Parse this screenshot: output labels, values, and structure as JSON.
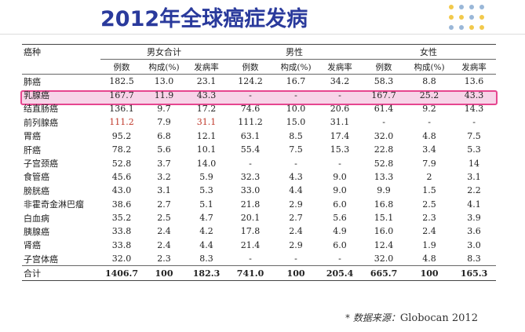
{
  "title": "2012年全球癌症发病",
  "source": {
    "label": "* 数据来源：",
    "value": "Globocan 2012"
  },
  "colors": {
    "title": "#2a3a9c",
    "highlight_border": "#e6468f",
    "highlight_fill": "#f7d4e8"
  },
  "table": {
    "corner_label": "癌种",
    "groups": [
      "男女合计",
      "男性",
      "女性"
    ],
    "subheaders": [
      "例数",
      "构成(%)",
      "发病率"
    ],
    "rows": [
      [
        "肺癌",
        "182.5",
        "13.0",
        "23.1",
        "124.2",
        "16.7",
        "34.2",
        "58.3",
        "8.8",
        "13.6"
      ],
      [
        "乳腺癌",
        "167.7",
        "11.9",
        "43.3",
        "-",
        "-",
        "-",
        "167.7",
        "25.2",
        "43.3"
      ],
      [
        "结直肠癌",
        "136.1",
        "9.7",
        "17.2",
        "74.6",
        "10.0",
        "20.6",
        "61.4",
        "9.2",
        "14.3"
      ],
      [
        "前列腺癌",
        "111.2",
        "7.9",
        "31.1",
        "111.2",
        "15.0",
        "31.1",
        "-",
        "-",
        "-"
      ],
      [
        "胃癌",
        "95.2",
        "6.8",
        "12.1",
        "63.1",
        "8.5",
        "17.4",
        "32.0",
        "4.8",
        "7.5"
      ],
      [
        "肝癌",
        "78.2",
        "5.6",
        "10.1",
        "55.4",
        "7.5",
        "15.3",
        "22.8",
        "3.4",
        "5.3"
      ],
      [
        "子宫颈癌",
        "52.8",
        "3.7",
        "14.0",
        "-",
        "-",
        "-",
        "52.8",
        "7.9",
        "14"
      ],
      [
        "食管癌",
        "45.6",
        "3.2",
        "5.9",
        "32.3",
        "4.3",
        "9.0",
        "13.3",
        "2",
        "3.1"
      ],
      [
        "膀胱癌",
        "43.0",
        "3.1",
        "5.3",
        "33.0",
        "4.4",
        "9.0",
        "9.9",
        "1.5",
        "2.2"
      ],
      [
        "非霍奇金淋巴瘤",
        "38.6",
        "2.7",
        "5.1",
        "21.8",
        "2.9",
        "6.0",
        "16.8",
        "2.5",
        "4.1"
      ],
      [
        "白血病",
        "35.2",
        "2.5",
        "4.7",
        "20.1",
        "2.7",
        "5.6",
        "15.1",
        "2.3",
        "3.9"
      ],
      [
        "胰腺癌",
        "33.8",
        "2.4",
        "4.2",
        "17.8",
        "2.4",
        "4.9",
        "16.0",
        "2.4",
        "3.6"
      ],
      [
        "肾癌",
        "33.8",
        "2.4",
        "4.4",
        "21.4",
        "2.9",
        "6.0",
        "12.4",
        "1.9",
        "3.0"
      ],
      [
        "子宫体癌",
        "32.0",
        "2.3",
        "8.3",
        "-",
        "-",
        "-",
        "32.0",
        "4.8",
        "8.3"
      ]
    ],
    "total": [
      "合计",
      "1406.7",
      "100",
      "182.3",
      "741.0",
      "100",
      "205.4",
      "665.7",
      "100",
      "165.3"
    ]
  }
}
